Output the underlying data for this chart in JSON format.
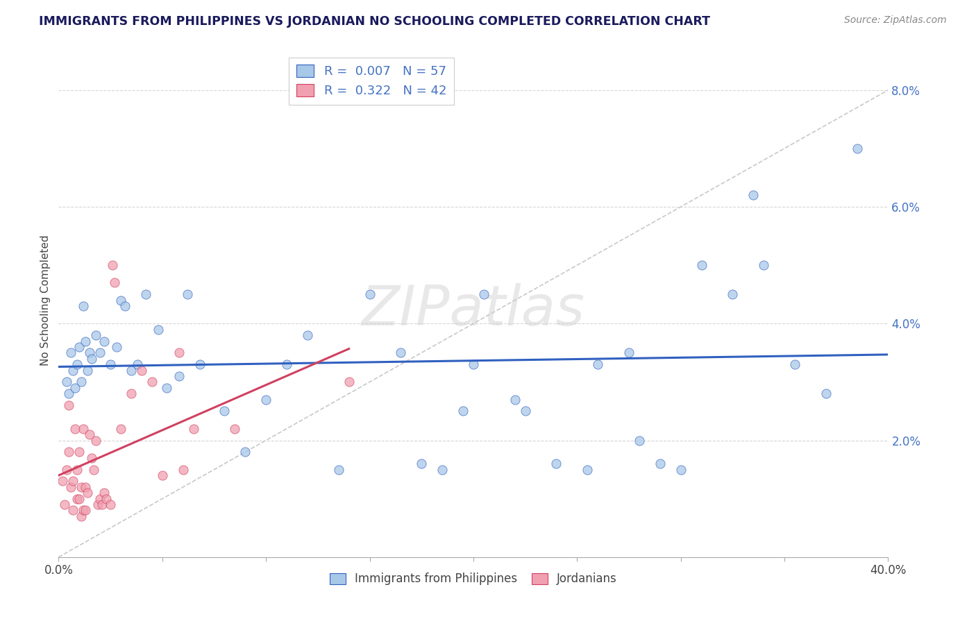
{
  "title": "IMMIGRANTS FROM PHILIPPINES VS JORDANIAN NO SCHOOLING COMPLETED CORRELATION CHART",
  "source": "Source: ZipAtlas.com",
  "ylabel": "No Schooling Completed",
  "yticks_labels": [
    "2.0%",
    "4.0%",
    "6.0%",
    "8.0%"
  ],
  "ytick_vals": [
    2.0,
    4.0,
    6.0,
    8.0
  ],
  "xlim": [
    0.0,
    40.0
  ],
  "ylim": [
    0.0,
    8.8
  ],
  "legend_label1": "Immigrants from Philippines",
  "legend_label2": "Jordanians",
  "blue_color": "#A8C8E8",
  "pink_color": "#F0A0B0",
  "trendline_blue": "#3060C0",
  "trendline_pink": "#D04060",
  "diag_color": "#C8C8C8",
  "watermark": "ZIPatlas",
  "blue_points": [
    [
      0.4,
      3.0
    ],
    [
      0.5,
      2.8
    ],
    [
      0.6,
      3.5
    ],
    [
      0.7,
      3.2
    ],
    [
      0.8,
      2.9
    ],
    [
      0.9,
      3.3
    ],
    [
      1.0,
      3.6
    ],
    [
      1.1,
      3.0
    ],
    [
      1.2,
      4.3
    ],
    [
      1.3,
      3.7
    ],
    [
      1.4,
      3.2
    ],
    [
      1.5,
      3.5
    ],
    [
      1.6,
      3.4
    ],
    [
      1.8,
      3.8
    ],
    [
      2.0,
      3.5
    ],
    [
      2.2,
      3.7
    ],
    [
      2.5,
      3.3
    ],
    [
      2.8,
      3.6
    ],
    [
      3.0,
      4.4
    ],
    [
      3.2,
      4.3
    ],
    [
      3.5,
      3.2
    ],
    [
      3.8,
      3.3
    ],
    [
      4.2,
      4.5
    ],
    [
      4.8,
      3.9
    ],
    [
      5.2,
      2.9
    ],
    [
      5.8,
      3.1
    ],
    [
      6.2,
      4.5
    ],
    [
      6.8,
      3.3
    ],
    [
      8.0,
      2.5
    ],
    [
      9.0,
      1.8
    ],
    [
      10.0,
      2.7
    ],
    [
      11.0,
      3.3
    ],
    [
      12.0,
      3.8
    ],
    [
      13.5,
      1.5
    ],
    [
      15.0,
      4.5
    ],
    [
      16.5,
      3.5
    ],
    [
      17.5,
      1.6
    ],
    [
      18.5,
      1.5
    ],
    [
      19.5,
      2.5
    ],
    [
      20.5,
      4.5
    ],
    [
      22.0,
      2.7
    ],
    [
      24.0,
      1.6
    ],
    [
      26.0,
      3.3
    ],
    [
      28.0,
      2.0
    ],
    [
      30.0,
      1.5
    ],
    [
      31.0,
      5.0
    ],
    [
      32.5,
      4.5
    ],
    [
      33.5,
      6.2
    ],
    [
      35.5,
      3.3
    ],
    [
      37.0,
      2.8
    ],
    [
      38.5,
      7.0
    ],
    [
      20.0,
      3.3
    ],
    [
      22.5,
      2.5
    ],
    [
      25.5,
      1.5
    ],
    [
      27.5,
      3.5
    ],
    [
      29.0,
      1.6
    ],
    [
      34.0,
      5.0
    ]
  ],
  "pink_points": [
    [
      0.2,
      1.3
    ],
    [
      0.3,
      0.9
    ],
    [
      0.4,
      1.5
    ],
    [
      0.5,
      1.8
    ],
    [
      0.5,
      2.6
    ],
    [
      0.6,
      1.2
    ],
    [
      0.7,
      1.3
    ],
    [
      0.7,
      0.8
    ],
    [
      0.8,
      2.2
    ],
    [
      0.9,
      1.5
    ],
    [
      0.9,
      1.0
    ],
    [
      1.0,
      1.8
    ],
    [
      1.0,
      1.0
    ],
    [
      1.1,
      1.2
    ],
    [
      1.1,
      0.7
    ],
    [
      1.2,
      0.8
    ],
    [
      1.2,
      2.2
    ],
    [
      1.3,
      1.2
    ],
    [
      1.3,
      0.8
    ],
    [
      1.4,
      1.1
    ],
    [
      1.5,
      2.1
    ],
    [
      1.6,
      1.7
    ],
    [
      1.7,
      1.5
    ],
    [
      1.8,
      2.0
    ],
    [
      1.9,
      0.9
    ],
    [
      2.0,
      1.0
    ],
    [
      2.1,
      0.9
    ],
    [
      2.2,
      1.1
    ],
    [
      2.3,
      1.0
    ],
    [
      2.5,
      0.9
    ],
    [
      2.6,
      5.0
    ],
    [
      2.7,
      4.7
    ],
    [
      3.0,
      2.2
    ],
    [
      3.5,
      2.8
    ],
    [
      4.0,
      3.2
    ],
    [
      4.5,
      3.0
    ],
    [
      5.0,
      1.4
    ],
    [
      5.8,
      3.5
    ],
    [
      6.0,
      1.5
    ],
    [
      6.5,
      2.2
    ],
    [
      8.5,
      2.2
    ],
    [
      14.0,
      3.0
    ]
  ]
}
